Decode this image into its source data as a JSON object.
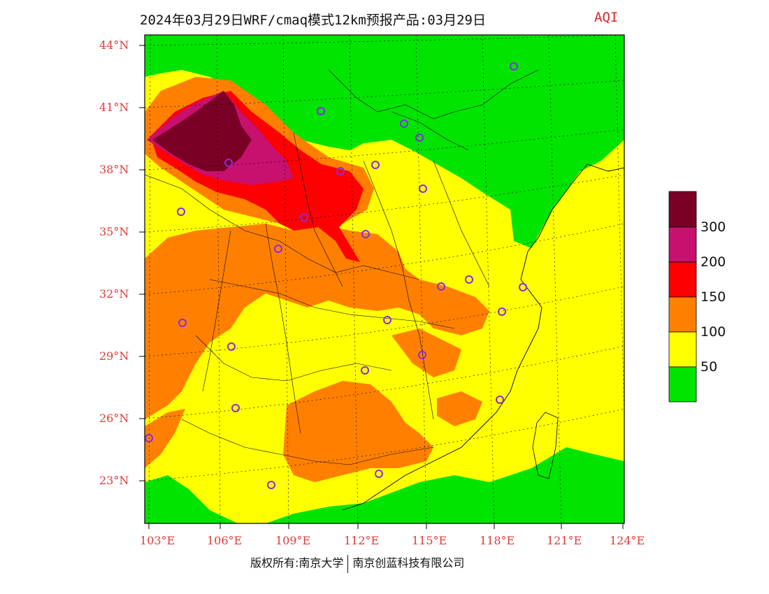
{
  "title": "2024年03月29日WRF/cmaq模式12km预报产品:03月29日",
  "aqi_label": "AQI",
  "lat_labels": [
    "44°N",
    "41°N",
    "38°N",
    "35°N",
    "32°N",
    "29°N",
    "26°N",
    "23°N"
  ],
  "lon_labels": [
    "103°E",
    "106°E",
    "109°E",
    "112°E",
    "115°E",
    "118°E",
    "121°E",
    "124°E"
  ],
  "footer": {
    "left": "版权所有:南京大学",
    "right": "南京创蓝科技有限公司"
  },
  "legend": {
    "labels": [
      "300",
      "200",
      "150",
      "100",
      "50"
    ],
    "colors": [
      "#7a0025",
      "#c8106e",
      "#ff0000",
      "#ff8000",
      "#ffff00",
      "#00e400"
    ]
  },
  "colors": {
    "good": "#00e400",
    "moderate": "#ffff00",
    "usg": "#ff8000",
    "unhealthy": "#ff0000",
    "very_unhealthy": "#c8106e",
    "hazardous": "#7a0025",
    "station_ring": "#8a2be2",
    "axis_label": "#e03a3a"
  }
}
